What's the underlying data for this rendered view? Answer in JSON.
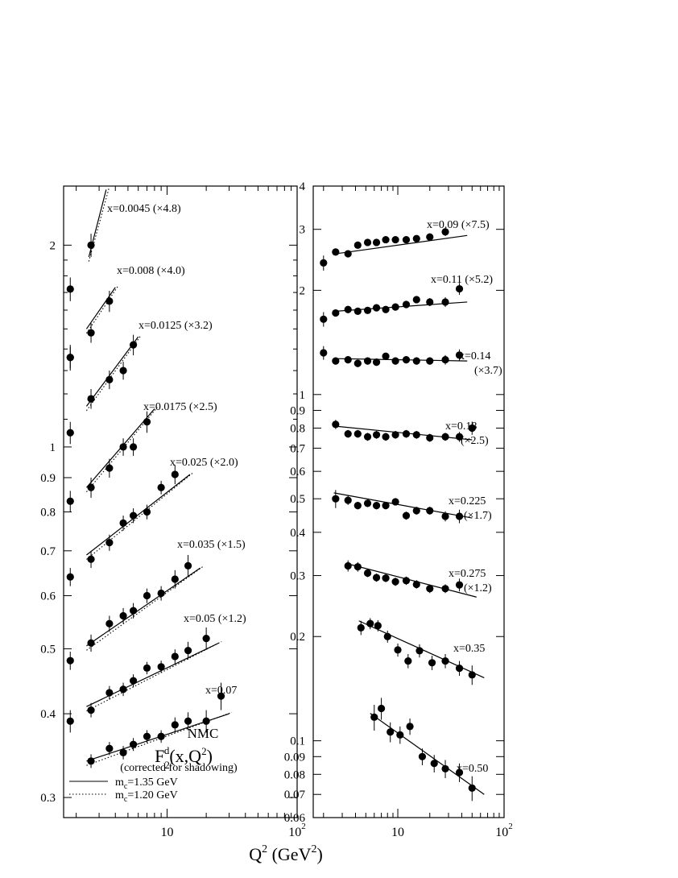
{
  "chart_data": [
    {
      "type": "scatter",
      "title": "",
      "xlabel": "Q^2 (GeV^2)",
      "xscale": "log",
      "yscale": "log",
      "xlim": [
        1.6,
        100
      ],
      "ylim": [
        0.28,
        2.45
      ],
      "x_ticks": [
        {
          "v": 10,
          "t": "10"
        },
        {
          "v": 100,
          "t": "10",
          "sup": "2"
        }
      ],
      "y_ticks": [
        0.3,
        0.4,
        0.5,
        0.6,
        0.7,
        0.8,
        0.9,
        1,
        2
      ],
      "grid": false,
      "legend": {
        "position": "bottom-left",
        "experiment": "NMC",
        "observable": "F",
        "observable_sub": "2",
        "observable_sup": "d",
        "observable_args": "(x,Q",
        "observable_args_sup": "2",
        "observable_args_end": ")",
        "note": "(corrected for shadowing)",
        "entries": [
          {
            "label": "m",
            "sub": "c",
            "rest": "=1.35 GeV",
            "style": "solid"
          },
          {
            "label": "m",
            "sub": "c",
            "rest": "=1.20 GeV",
            "style": "dotted"
          }
        ]
      },
      "series": [
        {
          "name": "x=0.0045 (×4.8)",
          "points": [
            [
              1.8,
              1.72
            ],
            [
              2.6,
              2.0
            ]
          ],
          "err": [
            0.07,
            0.08
          ],
          "fit": [
            [
              2.5,
              1.92
            ],
            [
              3.4,
              2.42
            ]
          ]
        },
        {
          "name": "x=0.008 (×4.0)",
          "points": [
            [
              1.8,
              1.36
            ],
            [
              2.6,
              1.48
            ],
            [
              3.6,
              1.65
            ]
          ],
          "err": [
            0.06,
            0.05,
            0.06
          ],
          "fit": [
            [
              2.4,
              1.5
            ],
            [
              4.0,
              1.73
            ]
          ]
        },
        {
          "name": "x=0.0125 (×3.2)",
          "points": [
            [
              1.8,
              1.36
            ],
            [
              2.6,
              1.18
            ],
            [
              3.6,
              1.26
            ],
            [
              4.6,
              1.3
            ],
            [
              5.5,
              1.42
            ]
          ],
          "err": [
            0.05,
            0.04,
            0.04,
            0.04,
            0.05
          ],
          "fit": [
            [
              2.4,
              1.15
            ],
            [
              6.0,
              1.46
            ]
          ]
        },
        {
          "name": "x=0.0175 (×2.5)",
          "points": [
            [
              1.8,
              1.05
            ],
            [
              2.6,
              0.87
            ],
            [
              3.6,
              0.93
            ],
            [
              4.6,
              1.0
            ],
            [
              5.5,
              1.0
            ],
            [
              7.0,
              1.09
            ]
          ],
          "err": [
            0.04,
            0.03,
            0.03,
            0.03,
            0.03,
            0.04
          ],
          "fit": [
            [
              2.4,
              0.87
            ],
            [
              8.0,
              1.14
            ]
          ]
        },
        {
          "name": "x=0.025 (×2.0)",
          "points": [
            [
              1.8,
              0.83
            ],
            [
              2.6,
              0.68
            ],
            [
              3.6,
              0.72
            ],
            [
              4.6,
              0.77
            ],
            [
              5.5,
              0.79
            ],
            [
              7.0,
              0.8
            ],
            [
              9.0,
              0.87
            ],
            [
              11.5,
              0.91
            ]
          ],
          "err": [
            0.03,
            0.02,
            0.02,
            0.02,
            0.02,
            0.02,
            0.02,
            0.03
          ],
          "fit": [
            [
              2.4,
              0.69
            ],
            [
              15.0,
              0.91
            ]
          ]
        },
        {
          "name": "x=0.035 (×1.5)",
          "points": [
            [
              1.8,
              0.64
            ],
            [
              2.6,
              0.51
            ],
            [
              3.6,
              0.545
            ],
            [
              4.6,
              0.56
            ],
            [
              5.5,
              0.57
            ],
            [
              7.0,
              0.6
            ],
            [
              9.0,
              0.605
            ],
            [
              11.5,
              0.635
            ],
            [
              14.5,
              0.665
            ]
          ],
          "err": [
            0.02,
            0.015,
            0.015,
            0.015,
            0.015,
            0.015,
            0.015,
            0.02,
            0.025
          ],
          "fit": [
            [
              2.4,
              0.505
            ],
            [
              18.0,
              0.66
            ]
          ]
        },
        {
          "name": "x=0.05 (×1.2)",
          "points": [
            [
              1.8,
              0.48
            ],
            [
              2.6,
              0.405
            ],
            [
              3.6,
              0.43
            ],
            [
              4.6,
              0.435
            ],
            [
              5.5,
              0.448
            ],
            [
              7.0,
              0.468
            ],
            [
              9.0,
              0.47
            ],
            [
              11.5,
              0.487
            ],
            [
              14.5,
              0.497
            ],
            [
              20.0,
              0.518
            ]
          ],
          "err": [
            0.015,
            0.01,
            0.01,
            0.01,
            0.01,
            0.01,
            0.01,
            0.012,
            0.015,
            0.02
          ],
          "fit": [
            [
              2.4,
              0.41
            ],
            [
              25.0,
              0.51
            ]
          ]
        },
        {
          "name": "x=0.07",
          "points": [
            [
              1.8,
              0.39
            ],
            [
              2.6,
              0.34
            ],
            [
              3.6,
              0.355
            ],
            [
              4.6,
              0.35
            ],
            [
              5.5,
              0.36
            ],
            [
              7.0,
              0.37
            ],
            [
              9.0,
              0.37
            ],
            [
              11.5,
              0.385
            ],
            [
              14.5,
              0.39
            ],
            [
              20.0,
              0.39
            ],
            [
              26.0,
              0.425
            ]
          ],
          "err": [
            0.015,
            0.008,
            0.008,
            0.008,
            0.008,
            0.008,
            0.008,
            0.01,
            0.012,
            0.015,
            0.02
          ],
          "fit": [
            [
              2.4,
              0.34
            ],
            [
              30.0,
              0.4
            ]
          ]
        }
      ]
    },
    {
      "type": "scatter",
      "title": "",
      "xlabel": "Q^2 (GeV^2)",
      "xscale": "log",
      "yscale": "log",
      "xlim": [
        1.6,
        100
      ],
      "ylim": [
        0.06,
        4
      ],
      "x_ticks": [
        {
          "v": 10,
          "t": "10"
        },
        {
          "v": 100,
          "t": "10",
          "sup": "2"
        }
      ],
      "y_ticks": [
        0.06,
        0.07,
        0.08,
        0.09,
        0.1,
        0.2,
        0.3,
        0.4,
        0.5,
        0.6,
        0.7,
        0.8,
        0.9,
        1,
        2,
        3,
        4
      ],
      "grid": false,
      "series": [
        {
          "name": "x=0.09 (×7.5)",
          "points": [
            [
              2.0,
              2.4
            ],
            [
              2.6,
              2.58
            ],
            [
              3.4,
              2.55
            ],
            [
              4.2,
              2.7
            ],
            [
              5.2,
              2.75
            ],
            [
              6.3,
              2.75
            ],
            [
              7.7,
              2.8
            ],
            [
              9.5,
              2.8
            ],
            [
              12.0,
              2.8
            ],
            [
              15.0,
              2.82
            ],
            [
              20.0,
              2.85
            ],
            [
              28.0,
              2.95
            ]
          ],
          "err": [
            0.12,
            0.06,
            0.06,
            0.06,
            0.06,
            0.06,
            0.06,
            0.06,
            0.06,
            0.06,
            0.07,
            0.08
          ],
          "fit": [
            [
              2.6,
              2.55
            ],
            [
              45.0,
              2.88
            ]
          ]
        },
        {
          "name": "x=0.11 (×5.2)",
          "points": [
            [
              2.0,
              1.65
            ],
            [
              2.6,
              1.72
            ],
            [
              3.4,
              1.76
            ],
            [
              4.2,
              1.74
            ],
            [
              5.2,
              1.75
            ],
            [
              6.3,
              1.78
            ],
            [
              7.7,
              1.76
            ],
            [
              9.5,
              1.79
            ],
            [
              12.0,
              1.82
            ],
            [
              15.0,
              1.88
            ],
            [
              20.0,
              1.85
            ],
            [
              28.0,
              1.85
            ],
            [
              38.0,
              2.02
            ]
          ],
          "err": [
            0.08,
            0.04,
            0.04,
            0.04,
            0.04,
            0.04,
            0.04,
            0.04,
            0.04,
            0.04,
            0.05,
            0.06,
            0.08
          ],
          "fit": [
            [
              2.6,
              1.74
            ],
            [
              45.0,
              1.85
            ]
          ]
        },
        {
          "name": "x=0.14",
          "points": [
            [
              2.0,
              1.32
            ],
            [
              2.6,
              1.25
            ],
            [
              3.4,
              1.26
            ],
            [
              4.2,
              1.23
            ],
            [
              5.2,
              1.25
            ],
            [
              6.3,
              1.24
            ],
            [
              7.7,
              1.29
            ],
            [
              9.5,
              1.25
            ],
            [
              12.0,
              1.26
            ],
            [
              15.0,
              1.25
            ],
            [
              20.0,
              1.25
            ],
            [
              28.0,
              1.26
            ],
            [
              38.0,
              1.3
            ]
          ],
          "err": [
            0.06,
            0.03,
            0.03,
            0.03,
            0.03,
            0.03,
            0.03,
            0.03,
            0.03,
            0.03,
            0.03,
            0.04,
            0.05
          ],
          "fit": [
            [
              2.6,
              1.27
            ],
            [
              45.0,
              1.25
            ]
          ]
        },
        {
          "name": "x=0.18",
          "points": [
            [
              2.6,
              0.82
            ],
            [
              3.4,
              0.77
            ],
            [
              4.2,
              0.77
            ],
            [
              5.2,
              0.755
            ],
            [
              6.3,
              0.765
            ],
            [
              7.7,
              0.755
            ],
            [
              9.5,
              0.765
            ],
            [
              12.0,
              0.77
            ],
            [
              15.0,
              0.765
            ],
            [
              20.0,
              0.75
            ],
            [
              28.0,
              0.755
            ],
            [
              38.0,
              0.755
            ],
            [
              50.0,
              0.8
            ]
          ],
          "err": [
            0.025,
            0.02,
            0.02,
            0.02,
            0.02,
            0.02,
            0.02,
            0.02,
            0.02,
            0.02,
            0.02,
            0.025,
            0.035
          ],
          "fit": [
            [
              2.6,
              0.81
            ],
            [
              50.0,
              0.74
            ]
          ]
        },
        {
          "name": "x=0.225",
          "points": [
            [
              2.6,
              0.5
            ],
            [
              3.4,
              0.495
            ],
            [
              4.2,
              0.478
            ],
            [
              5.2,
              0.485
            ],
            [
              6.3,
              0.478
            ],
            [
              7.7,
              0.478
            ],
            [
              9.5,
              0.49
            ],
            [
              12.0,
              0.447
            ],
            [
              15.0,
              0.462
            ],
            [
              20.0,
              0.462
            ],
            [
              28.0,
              0.445
            ],
            [
              38.0,
              0.445
            ]
          ],
          "err": [
            0.03,
            0.015,
            0.012,
            0.012,
            0.012,
            0.012,
            0.012,
            0.012,
            0.012,
            0.012,
            0.015,
            0.02
          ],
          "fit": [
            [
              2.5,
              0.52
            ],
            [
              50.0,
              0.44
            ]
          ]
        },
        {
          "name": "x=0.275",
          "points": [
            [
              3.4,
              0.32
            ],
            [
              4.2,
              0.318
            ],
            [
              5.2,
              0.305
            ],
            [
              6.3,
              0.296
            ],
            [
              7.7,
              0.295
            ],
            [
              9.5,
              0.288
            ],
            [
              12.0,
              0.29
            ],
            [
              15.0,
              0.283
            ],
            [
              20.0,
              0.275
            ],
            [
              28.0,
              0.275
            ],
            [
              38.0,
              0.282
            ]
          ],
          "err": [
            0.012,
            0.01,
            0.008,
            0.008,
            0.008,
            0.008,
            0.008,
            0.008,
            0.008,
            0.008,
            0.012
          ],
          "fit": [
            [
              3.3,
              0.325
            ],
            [
              55.0,
              0.26
            ]
          ]
        },
        {
          "name": "x=0.35",
          "points": [
            [
              4.5,
              0.212
            ],
            [
              5.5,
              0.218
            ],
            [
              6.5,
              0.215
            ],
            [
              8.0,
              0.2
            ],
            [
              10.0,
              0.183
            ],
            [
              12.5,
              0.17
            ],
            [
              16.0,
              0.182
            ],
            [
              21.0,
              0.168
            ],
            [
              28.0,
              0.17
            ],
            [
              38.0,
              0.162
            ],
            [
              50.0,
              0.155
            ]
          ],
          "err": [
            0.01,
            0.008,
            0.008,
            0.008,
            0.008,
            0.008,
            0.008,
            0.008,
            0.008,
            0.008,
            0.01
          ],
          "fit": [
            [
              4.3,
              0.222
            ],
            [
              65.0,
              0.152
            ]
          ]
        },
        {
          "name": "x=0.50",
          "points": [
            [
              6.0,
              0.117
            ],
            [
              7.0,
              0.124
            ],
            [
              8.5,
              0.106
            ],
            [
              10.5,
              0.104
            ],
            [
              13.0,
              0.11
            ],
            [
              17.0,
              0.09
            ],
            [
              22.0,
              0.086
            ],
            [
              28.0,
              0.083
            ],
            [
              38.0,
              0.081
            ],
            [
              50.0,
              0.073
            ]
          ],
          "err": [
            0.01,
            0.009,
            0.007,
            0.006,
            0.006,
            0.005,
            0.005,
            0.005,
            0.005,
            0.006
          ],
          "fit": [
            [
              5.5,
              0.12
            ],
            [
              65.0,
              0.07
            ]
          ]
        }
      ]
    }
  ],
  "right_series_labels": [
    {
      "line1": "x=0.09 (×7.5)",
      "line2": ""
    },
    {
      "line1": "x=0.11 (×5.2)",
      "line2": ""
    },
    {
      "line1": "x=0.14",
      "line2": "(×3.7)"
    },
    {
      "line1": "x=0.18",
      "line2": "(×2.5)"
    },
    {
      "line1": "x=0.225",
      "line2": "(×1.7)"
    },
    {
      "line1": "x=0.275",
      "line2": "(×1.2)"
    },
    {
      "line1": "x=0.35",
      "line2": ""
    },
    {
      "line1": "x=0.50",
      "line2": ""
    }
  ],
  "axis_title": {
    "base": "Q",
    "sup": "2",
    "rest": " (GeV",
    "sup2": "2",
    "end": ")"
  }
}
